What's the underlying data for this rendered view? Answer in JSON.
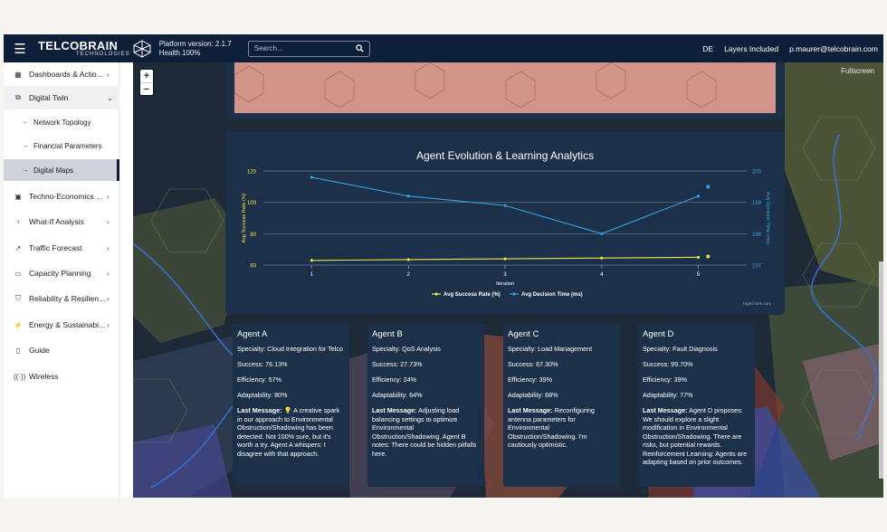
{
  "header": {
    "brand": "TELCOBRAIN",
    "brand_sub": "TECHNOLOGIES",
    "platform_version": "Platform version: 2.1.7",
    "health": "Health 100%",
    "search_placeholder": "Search...",
    "language": "DE",
    "layers": "Layers Included",
    "user": "p.maurer@telcobrain.com"
  },
  "sidebar": {
    "items": [
      {
        "icon": "dashboard-icon",
        "label": "Dashboards & Actio..."
      },
      {
        "icon": "digital-twin-icon",
        "label": "Digital Twin"
      },
      {
        "icon": "money-icon",
        "label": "Techno-Economics ..."
      },
      {
        "icon": "arrow-up-icon",
        "label": "What-If Analysis"
      },
      {
        "icon": "trend-icon",
        "label": "Traffic Forecast"
      },
      {
        "icon": "clipboard-icon",
        "label": "Capacity Planning"
      },
      {
        "icon": "shield-icon",
        "label": "Reliability & Resilien..."
      },
      {
        "icon": "energy-icon",
        "label": "Energy & Sustainabi..."
      },
      {
        "icon": "book-icon",
        "label": "Guide"
      },
      {
        "icon": "wireless-icon",
        "label": "Wireless"
      }
    ],
    "subitems": [
      {
        "label": "Network Topology"
      },
      {
        "label": "Financial Parameters"
      },
      {
        "label": "Digital Maps"
      }
    ]
  },
  "map": {
    "zoom_in": "+",
    "zoom_out": "−",
    "fullscreen": "Fullscreen"
  },
  "chart_data": {
    "type": "line",
    "title": "Agent Evolution & Learning Analytics",
    "xlabel": "Iteration",
    "ylabel_left": "Avg Success Rate (%)",
    "ylabel_right": "Avg Decision Time (ms)",
    "categories": [
      1,
      2,
      3,
      4,
      5
    ],
    "y_left_ticks": [
      60,
      80,
      100,
      120
    ],
    "y_right_ticks": [
      197,
      198,
      199,
      200
    ],
    "ylim_left": [
      60,
      120
    ],
    "ylim_right": [
      197,
      200
    ],
    "series": [
      {
        "name": "Avg Success Rate (%)",
        "axis": "left",
        "color": "#f0e442",
        "values": [
          63,
          63.5,
          64,
          64.5,
          65,
          65.5
        ]
      },
      {
        "name": "Avg Decision Time (ms)",
        "axis": "right",
        "color": "#3aa3e3",
        "values": [
          199.8,
          199.2,
          198.9,
          198,
          199.2,
          199.5
        ]
      }
    ],
    "x_values": [
      1,
      2,
      3,
      4,
      5,
      5.1
    ],
    "credit": "Highcharts.com",
    "legend_position": "bottom"
  },
  "agents": [
    {
      "name": "Agent A",
      "specialty": "Specialty: Cloud Integration for Telco",
      "success": "Success: 76.13%",
      "efficiency": "Efficiency: 57%",
      "adaptability": "Adaptability: 80%",
      "msg_label": "Last Message:",
      "message": " 💡 A creative spark in our approach to Environmental Obstruction/Shadowing has been detected. Not 100% sure, but it's worth a try. Agent A whispers: I disagree with that approach."
    },
    {
      "name": "Agent B",
      "specialty": "Specialty: QoS Analysis",
      "success": "Success: 27.73%",
      "efficiency": "Efficiency: 24%",
      "adaptability": "Adaptability: 64%",
      "msg_label": "Last Message:",
      "message": " Adjusting load balancing settings to optimize Environmental Obstruction/Shadowing. Agent B notes: There could be hidden pitfalls here."
    },
    {
      "name": "Agent C",
      "specialty": "Specialty: Load Management",
      "success": "Success: 67.30%",
      "efficiency": "Efficiency: 39%",
      "adaptability": "Adaptability: 68%",
      "msg_label": "Last Message:",
      "message": " Reconfiguring antenna parameters for Environmental Obstruction/Shadowing. I'm cautiously optimistic."
    },
    {
      "name": "Agent D",
      "specialty": "Specialty: Fault Diagnosis",
      "success": "Success: 99.70%",
      "efficiency": "Efficiency: 39%",
      "adaptability": "Adaptability: 77%",
      "msg_label": "Last Message:",
      "message": " Agent D proposes: We should explore a slight modification in Environmental Obstruction/Shadowing. There are risks, but potential rewards. Reinforcement Learning: Agents are adapting based on prior outcomes."
    }
  ]
}
